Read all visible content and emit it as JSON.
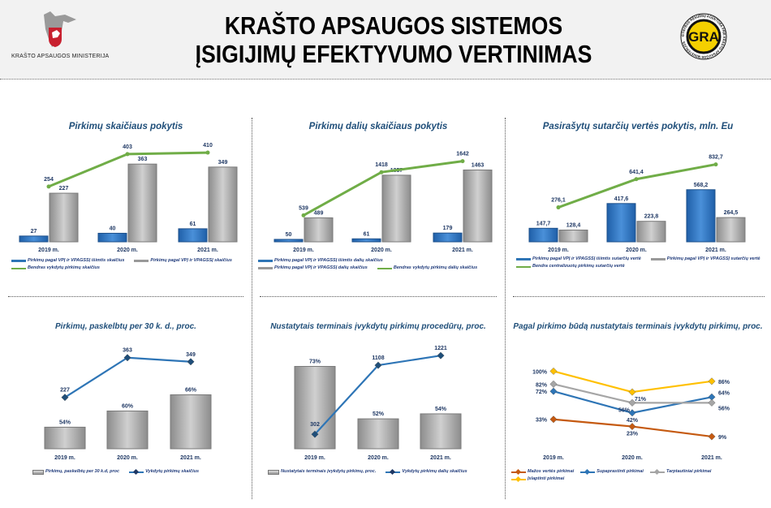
{
  "header": {
    "title_line1": "KRAŠTO APSAUGOS SISTEMOS",
    "title_line2": "ĮSIGIJIMŲ EFEKTYVUMO VERTINIMAS",
    "ministry": "KRAŠTO APSAUGOS MINISTERIJA",
    "logo_right": "GRA",
    "logo_right_ring": "GYNYBOS RESURSŲ AGENTŪRA PRIE KRAŠTO APSAUGOS MINISTERIJOS"
  },
  "colors": {
    "blue": "#2e75b6",
    "gray": "#a6a6a6",
    "green": "#70ad47",
    "orange": "#c55a11",
    "yellow": "#ffc000",
    "label": "#1f3864",
    "title": "#1f4e79"
  },
  "chart_data": [
    {
      "type": "bar+line",
      "title": "Pirkimų skaičiaus pokytis",
      "categories": [
        "2019 m.",
        "2020 m.",
        "2021 m."
      ],
      "bar_ylim": [
        0,
        447
      ],
      "line_ylim": [
        0,
        440
      ],
      "bars": [
        {
          "name": "Pirkimų pagal VPĮ ir VPAGSSĮ išimtis skaičius",
          "color": "blue",
          "values": [
            27,
            40,
            61
          ],
          "labels": [
            "27",
            "40",
            "61"
          ]
        },
        {
          "name": "Pirkimų pagal VPĮ ir VPAGSSĮ skaičius",
          "color": "gray",
          "values": [
            227,
            363,
            349
          ],
          "labels": [
            "227",
            "363",
            "349"
          ]
        }
      ],
      "lines": [
        {
          "name": "Bendras vykdytų pirkimų skaičius",
          "color": "green",
          "values": [
            254,
            403,
            410
          ],
          "labels": [
            "254",
            "403",
            "410"
          ]
        }
      ]
    },
    {
      "type": "bar+line",
      "title": "Pirkimų dalių skaičiaus pokytis",
      "categories": [
        "2019 m.",
        "2020 m.",
        "2021 m."
      ],
      "bar_ylim": [
        0,
        1950
      ],
      "line_ylim": [
        0,
        1950
      ],
      "bars": [
        {
          "name": "Pirkimų pagal VPĮ ir VPAGSSĮ išimtis dalių skaičius",
          "color": "blue",
          "values": [
            50,
            61,
            179
          ],
          "labels": [
            "50",
            "61",
            "179"
          ]
        },
        {
          "name": "Pirkimų pagal VPĮ ir VPAGSSĮ dalių skaičius",
          "color": "gray",
          "values": [
            489,
            1357,
            1463
          ],
          "labels": [
            "489",
            "1357",
            "1463"
          ]
        }
      ],
      "lines": [
        {
          "name": "Bendras vykdytų pirkimų dalių skaičius",
          "color": "green",
          "values": [
            539,
            1418,
            1642
          ],
          "labels": [
            "539",
            "1418",
            "1642"
          ]
        }
      ]
    },
    {
      "type": "bar+line",
      "title": "Pasirašytų sutarčių vertės pokytis, mln. Eu",
      "categories": [
        "2019 m.",
        "2020 m.",
        "2021 m."
      ],
      "bar_ylim": [
        0,
        1044
      ],
      "line_ylim": [
        -170,
        1070
      ],
      "bars": [
        {
          "name": "Pirkimų pagal VPĮ ir VPAGSSĮ išimtis sutarčių vertė",
          "color": "blue",
          "values": [
            147.7,
            417.6,
            568.2
          ],
          "labels": [
            "147,7",
            "417,6",
            "568,2"
          ]
        },
        {
          "name": "Pirkimų pagal VPĮ ir VPAGSSĮ sutarčių vertė",
          "color": "gray",
          "values": [
            128.4,
            223.8,
            264.5
          ],
          "labels": [
            "128,4",
            "223,8",
            "264,5"
          ]
        }
      ],
      "lines": [
        {
          "name": "Bendra centralizuotų pirkimų sutarčių vertė",
          "color": "green",
          "values": [
            276.1,
            641.4,
            832.7
          ],
          "labels": [
            "276,1",
            "641,4",
            "832,7"
          ]
        }
      ]
    },
    {
      "type": "bar+line",
      "title": "Pirkimų, paskelbtų per 30 k. d., proc.",
      "categories": [
        "2019 m.",
        "2020 m.",
        "2021 m."
      ],
      "bar_ylim": [
        46,
        83
      ],
      "line_ylim": [
        -52,
        290
      ],
      "bars": [
        {
          "name": "Pirkimų, paskelbtų per 30 k.d, proc",
          "color": "gray",
          "values": [
            54,
            60,
            66
          ],
          "labels": [
            "54%",
            "60%",
            "66%"
          ]
        }
      ],
      "lines": [
        {
          "name": "Vykdytų pirkimų skaičius",
          "color": "blue",
          "values": [
            227,
            363,
            349
          ],
          "labels": [
            "227",
            "363",
            "349"
          ]
        }
      ]
    },
    {
      "type": "bar+line",
      "title": "Nustatytais terminais įvykdytų pirkimų procedūrų, proc.",
      "categories": [
        "2019 m.",
        "2020 m.",
        "2021 m."
      ],
      "bar_ylim": [
        40,
        80
      ],
      "line_ylim": [
        -133,
        1033
      ],
      "bars": [
        {
          "name": "Nustatytais terminais įvykdytų pirkimų, proc.",
          "color": "gray",
          "values": [
            73,
            52,
            54
          ],
          "labels": [
            "73%",
            "52%",
            "54%"
          ]
        }
      ],
      "lines": [
        {
          "name": "Vykdytų pirkimų dalių skaičius",
          "color": "blue",
          "values": [
            302,
            1108,
            1221
          ],
          "labels": [
            "302",
            "1108",
            "1221"
          ]
        }
      ]
    },
    {
      "type": "line",
      "title": "Pagal pirkimo būdą nustatytais terminais įvykdytų pirkimų, proc.",
      "categories": [
        "2019 m.",
        "2020 m.",
        "2021 m."
      ],
      "line_ylim": [
        -8,
        131
      ],
      "bars": [],
      "lines": [
        {
          "name": "Mažos vertės pirkimai",
          "color": "orange",
          "values": [
            33,
            23,
            9
          ],
          "labels": [
            "33%",
            "23%",
            "9%"
          ]
        },
        {
          "name": "Supaprastinti pirkimai",
          "color": "blue",
          "values": [
            72,
            42,
            64
          ],
          "labels": [
            "72%",
            "42%",
            "64%"
          ]
        },
        {
          "name": "Tarptautiniai pirkimai",
          "color": "gray",
          "values": [
            82,
            56,
            56
          ],
          "labels": [
            "82%",
            "56%",
            "56%"
          ]
        },
        {
          "name": "Įslaptinti pirkimai",
          "color": "yellow",
          "values": [
            100,
            71,
            86
          ],
          "labels": [
            "100%",
            "71%",
            "86%"
          ]
        }
      ]
    }
  ]
}
